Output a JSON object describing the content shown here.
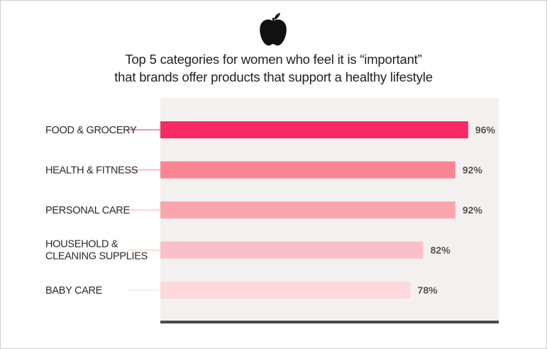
{
  "title": {
    "line1": "Top 5 categories for women who feel it is “important”",
    "line2": "that brands offer products that support a healthy lifestyle"
  },
  "icon": "apple-icon",
  "colors": {
    "plot_background": "#f3f1f0",
    "baseline": "#4a4a4a",
    "bars": [
      "#f72a64",
      "#f98593",
      "#fba5af",
      "#fbc0c7",
      "#fcd9dd"
    ],
    "leaders": [
      "#f72a64",
      "#f98593",
      "#fba5af",
      "#fbc0c7",
      "#fcd9dd"
    ]
  },
  "chart_data": {
    "type": "bar",
    "orientation": "horizontal",
    "title": "Top 5 categories for women who feel it is “important” that brands offer products that support a healthy lifestyle",
    "categories": [
      [
        "FOOD & GROCERY"
      ],
      [
        "HEALTH & FITNESS"
      ],
      [
        "PERSONAL CARE"
      ],
      [
        "HOUSEHOLD &",
        "CLEANING SUPPLIES"
      ],
      [
        "BABY CARE"
      ]
    ],
    "values": [
      96,
      92,
      92,
      82,
      78
    ],
    "value_labels": [
      "96%",
      "92%",
      "92%",
      "82%",
      "78%"
    ],
    "unit": "%",
    "xlim": [
      0,
      100
    ],
    "grid": false,
    "legend": "none"
  }
}
